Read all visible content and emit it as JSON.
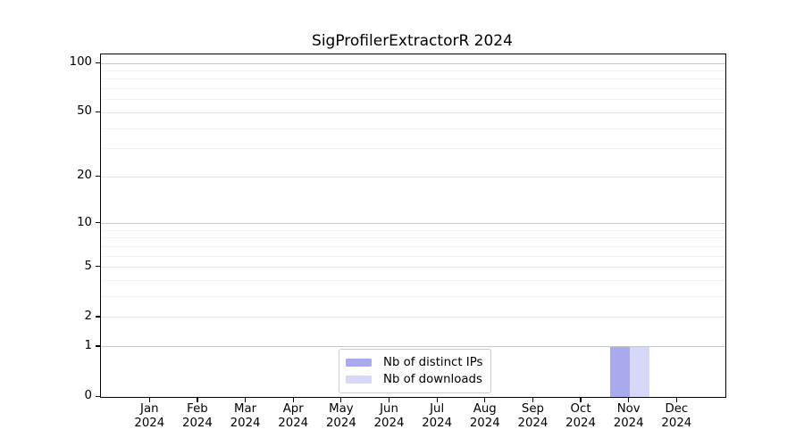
{
  "figure": {
    "title": "SigProfilerExtractorR 2024"
  },
  "chart_data": {
    "type": "bar",
    "title": "SigProfilerExtractorR 2024",
    "categories": [
      "Jan 2024",
      "Feb 2024",
      "Mar 2024",
      "Apr 2024",
      "May 2024",
      "Jun 2024",
      "Jul 2024",
      "Aug 2024",
      "Sep 2024",
      "Oct 2024",
      "Nov 2024",
      "Dec 2024"
    ],
    "series": [
      {
        "name": "Nb of distinct IPs",
        "color": "#a9a9f0",
        "values": [
          0,
          0,
          0,
          0,
          0,
          0,
          0,
          0,
          0,
          0,
          1,
          0
        ]
      },
      {
        "name": "Nb of downloads",
        "color": "#d7d7f7",
        "values": [
          0,
          0,
          0,
          0,
          0,
          0,
          0,
          0,
          0,
          0,
          1,
          0
        ]
      }
    ],
    "yscale": "log1p",
    "ylim": [
      0,
      113
    ],
    "yticks_major": [
      0,
      1,
      2,
      5,
      10,
      20,
      50,
      100
    ],
    "yticks_minor": [
      3,
      4,
      6,
      7,
      8,
      9,
      30,
      40,
      60,
      70,
      80,
      90
    ],
    "grid": "horizontal, major and minor, on",
    "legend_position": "lower center",
    "colors": {
      "gridline_decade": "#c9c9c9",
      "gridline_major": "#e4e4e4",
      "gridline_minor": "#f2f2f2",
      "axis": "#000000"
    }
  }
}
